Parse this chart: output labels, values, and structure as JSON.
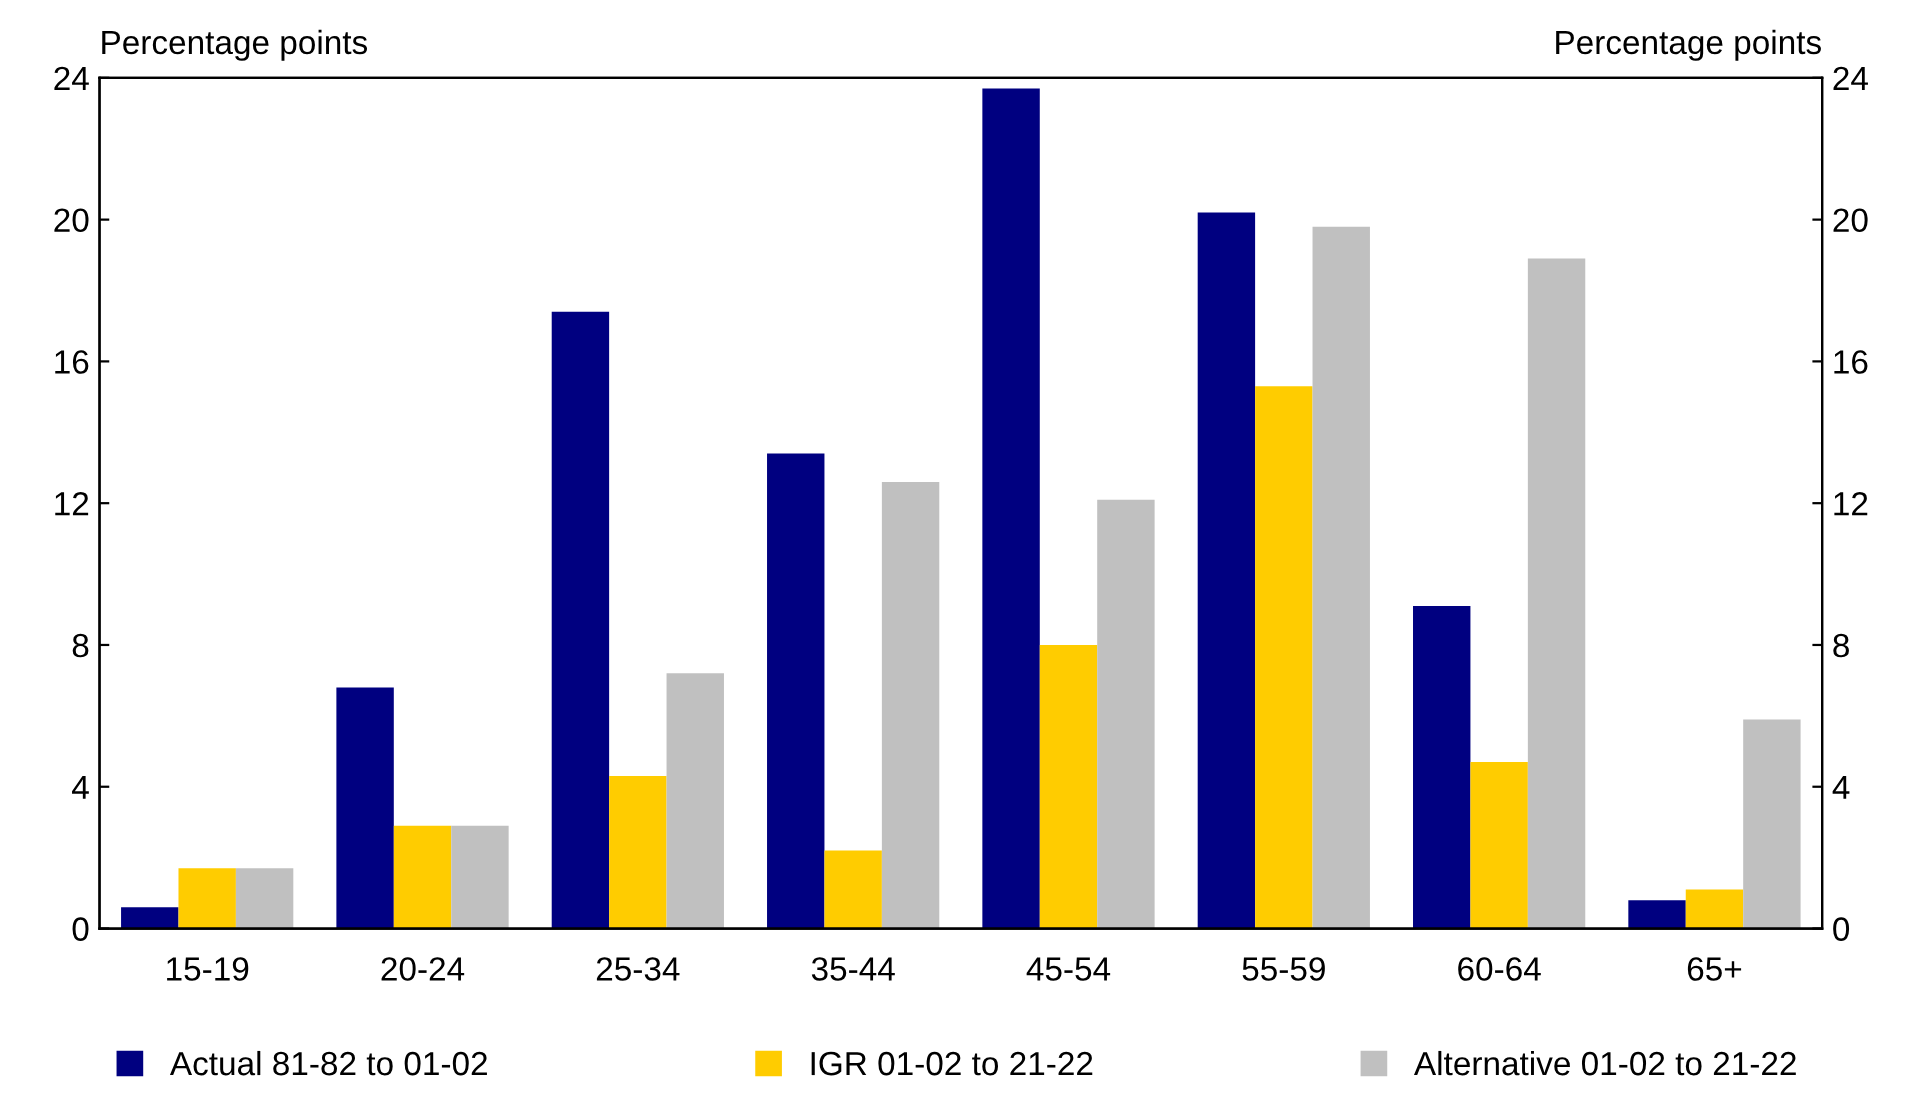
{
  "chart_data": {
    "type": "bar",
    "ylabel": "Percentage points",
    "y2label": "Percentage points",
    "categories": [
      "15-19",
      "20-24",
      "25-34",
      "35-44",
      "45-54",
      "55-59",
      "60-64",
      "65+"
    ],
    "series": [
      {
        "name": "Actual 81-82 to 01-02",
        "color": "#000080",
        "values": [
          0.6,
          6.8,
          17.4,
          13.4,
          23.7,
          20.2,
          9.1,
          0.8
        ]
      },
      {
        "name": "IGR 01-02 to 21-22",
        "color": "#ffcc00",
        "values": [
          1.7,
          2.9,
          4.3,
          2.2,
          8.0,
          15.3,
          4.7,
          1.1
        ]
      },
      {
        "name": "Alternative 01-02 to 21-22",
        "color": "#c0c0c0",
        "values": [
          1.7,
          2.9,
          7.2,
          12.6,
          12.1,
          19.8,
          18.9,
          5.9
        ]
      }
    ],
    "ylim": [
      0,
      24
    ],
    "yticks": [
      0,
      4,
      8,
      12,
      16,
      20,
      24
    ],
    "y2lim": [
      0,
      24
    ],
    "y2ticks": [
      0,
      4,
      8,
      12,
      16,
      20,
      24
    ],
    "legend": "bottom",
    "grid": false
  }
}
